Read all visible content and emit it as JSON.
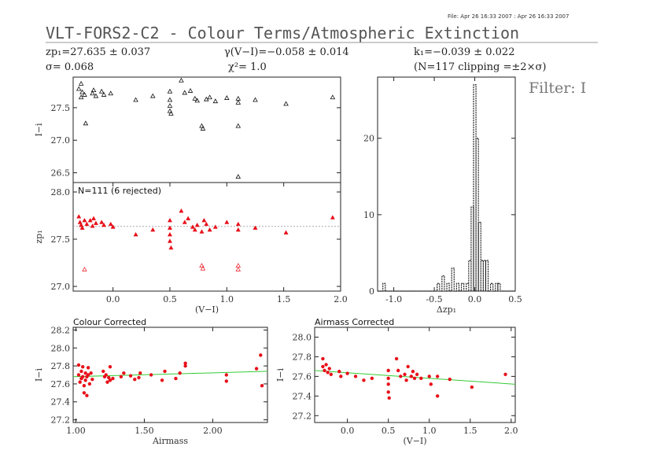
{
  "header": {
    "file_info": "File: Apr 26 16:33 2007 : Apr 26 16:33 2007",
    "title": "VLT-FORS2-C2  -  Colour Terms/Atmospheric Extinction",
    "zp": "zp₁=27.635 ± 0.037",
    "sigma": "σ= 0.068",
    "gamma": "γ(V−I)=−0.058 ± 0.014",
    "chi2": "χ²= 1.0",
    "k": "k₁=−0.039 ± 0.022",
    "n_clip": "(N=117 clipping =±2×σ)",
    "filter": "Filter: I"
  },
  "colors": {
    "red": "#e8101a",
    "black": "#111111",
    "fit": "#33cc33",
    "dotted": "#aaaaaa",
    "hist": "#222222"
  },
  "chart_data": [
    {
      "type": "scatter",
      "id": "raw",
      "ylabel": "I−i",
      "xlim": [
        -0.35,
        2.0
      ],
      "ylim": [
        26.35,
        27.97
      ],
      "xticks": [],
      "yticks": [
        "27.5",
        "27.0",
        "26.5"
      ],
      "marker": "open-triangle",
      "points": [
        [
          -0.28,
          27.87
        ],
        [
          -0.3,
          27.79
        ],
        [
          -0.27,
          27.74
        ],
        [
          -0.25,
          27.7
        ],
        [
          -0.28,
          27.66
        ],
        [
          -0.24,
          27.26
        ],
        [
          -0.18,
          27.72
        ],
        [
          -0.17,
          27.77
        ],
        [
          -0.15,
          27.68
        ],
        [
          -0.1,
          27.75
        ],
        [
          -0.08,
          27.7
        ],
        [
          -0.02,
          27.72
        ],
        [
          0.2,
          27.62
        ],
        [
          0.35,
          27.68
        ],
        [
          0.5,
          27.75
        ],
        [
          0.5,
          27.62
        ],
        [
          0.5,
          27.53
        ],
        [
          0.5,
          27.45
        ],
        [
          0.51,
          27.41
        ],
        [
          0.6,
          27.92
        ],
        [
          0.63,
          27.73
        ],
        [
          0.68,
          27.76
        ],
        [
          0.72,
          27.64
        ],
        [
          0.74,
          27.61
        ],
        [
          0.78,
          27.22
        ],
        [
          0.79,
          27.18
        ],
        [
          0.82,
          27.63
        ],
        [
          0.85,
          27.66
        ],
        [
          0.9,
          27.6
        ],
        [
          1.0,
          27.65
        ],
        [
          1.1,
          27.64
        ],
        [
          1.1,
          27.58
        ],
        [
          1.1,
          27.22
        ],
        [
          1.1,
          26.44
        ],
        [
          1.25,
          27.62
        ],
        [
          1.52,
          27.56
        ],
        [
          1.93,
          27.66
        ]
      ]
    },
    {
      "type": "scatter",
      "id": "zp",
      "note": "N=111 (6 rejected)",
      "xlabel": "(V−I)",
      "ylabel": "zp₁",
      "xlim": [
        -0.35,
        2.0
      ],
      "ylim": [
        26.95,
        28.1
      ],
      "xticks": [
        "0.0",
        "0.5",
        "1.0",
        "1.5",
        "2.0"
      ],
      "yticks": [
        "28.0",
        "27.5",
        "27.0"
      ],
      "ref_line": 27.635,
      "points": [
        [
          -0.3,
          27.74
        ],
        [
          -0.29,
          27.68
        ],
        [
          -0.28,
          27.65
        ],
        [
          -0.27,
          27.62
        ],
        [
          -0.25,
          27.7
        ],
        [
          -0.23,
          27.66
        ],
        [
          -0.2,
          27.7
        ],
        [
          -0.18,
          27.64
        ],
        [
          -0.17,
          27.72
        ],
        [
          -0.15,
          27.67
        ],
        [
          -0.1,
          27.68
        ],
        [
          -0.08,
          27.65
        ],
        [
          -0.02,
          27.66
        ],
        [
          0.0,
          27.63
        ],
        [
          0.2,
          27.55
        ],
        [
          0.35,
          27.6
        ],
        [
          0.5,
          27.7
        ],
        [
          0.5,
          27.62
        ],
        [
          0.5,
          27.55
        ],
        [
          0.5,
          27.48
        ],
        [
          0.51,
          27.41
        ],
        [
          0.6,
          27.8
        ],
        [
          0.63,
          27.68
        ],
        [
          0.66,
          27.72
        ],
        [
          0.7,
          27.63
        ],
        [
          0.72,
          27.6
        ],
        [
          0.74,
          27.65
        ],
        [
          0.78,
          27.58
        ],
        [
          0.8,
          27.7
        ],
        [
          0.82,
          27.66
        ],
        [
          0.85,
          27.6
        ],
        [
          0.9,
          27.63
        ],
        [
          1.0,
          27.68
        ],
        [
          1.1,
          27.66
        ],
        [
          1.1,
          27.6
        ],
        [
          1.25,
          27.62
        ],
        [
          1.52,
          27.57
        ],
        [
          1.93,
          27.73
        ]
      ],
      "rejected": [
        [
          -0.25,
          27.18
        ],
        [
          0.78,
          27.22
        ],
        [
          0.79,
          27.19
        ],
        [
          1.1,
          27.22
        ],
        [
          1.1,
          27.18
        ]
      ]
    },
    {
      "type": "histogram",
      "id": "hist",
      "xlabel": "Δzp₁",
      "xlim": [
        -1.2,
        0.5
      ],
      "ylim": [
        0,
        28
      ],
      "xticks": [
        "-1.0",
        "-0.5",
        "0.0",
        "0.5"
      ],
      "yticks": [
        "0",
        "10",
        "20"
      ],
      "bin_width": 0.03,
      "counts": [
        [
          -1.12,
          1
        ],
        [
          -0.45,
          1
        ],
        [
          -0.39,
          2
        ],
        [
          -0.33,
          1
        ],
        [
          -0.27,
          3
        ],
        [
          -0.21,
          1
        ],
        [
          -0.15,
          1
        ],
        [
          -0.09,
          1
        ],
        [
          -0.06,
          4
        ],
        [
          -0.03,
          11
        ],
        [
          0.0,
          27
        ],
        [
          0.03,
          20
        ],
        [
          0.06,
          9
        ],
        [
          0.09,
          4
        ],
        [
          0.12,
          4
        ],
        [
          0.15,
          4
        ],
        [
          0.21,
          1
        ],
        [
          0.27,
          1
        ],
        [
          0.3,
          1
        ]
      ]
    },
    {
      "type": "scatter",
      "id": "colour-corrected",
      "title": "Colour Corrected",
      "xlabel": "Airmass",
      "ylabel": "I−i",
      "xlim": [
        0.98,
        2.4
      ],
      "ylim": [
        27.17,
        28.23
      ],
      "xticks": [
        "1.00",
        "1.50",
        "2.00"
      ],
      "yticks": [
        "28.2",
        "28.0",
        "27.8",
        "27.6",
        "27.4",
        "27.2"
      ],
      "fit_line": [
        [
          0.98,
          27.68
        ],
        [
          2.4,
          27.74
        ]
      ],
      "points": [
        [
          1.02,
          27.81
        ],
        [
          1.02,
          27.7
        ],
        [
          1.03,
          27.62
        ],
        [
          1.04,
          27.66
        ],
        [
          1.04,
          27.74
        ],
        [
          1.05,
          27.79
        ],
        [
          1.05,
          27.68
        ],
        [
          1.06,
          27.58
        ],
        [
          1.06,
          27.5
        ],
        [
          1.07,
          27.72
        ],
        [
          1.07,
          27.64
        ],
        [
          1.08,
          27.68
        ],
        [
          1.08,
          27.47
        ],
        [
          1.09,
          27.78
        ],
        [
          1.09,
          27.7
        ],
        [
          1.1,
          27.6
        ],
        [
          1.11,
          27.72
        ],
        [
          1.12,
          27.65
        ],
        [
          1.2,
          27.74
        ],
        [
          1.21,
          27.68
        ],
        [
          1.22,
          27.7
        ],
        [
          1.23,
          27.62
        ],
        [
          1.24,
          27.67
        ],
        [
          1.25,
          27.64
        ],
        [
          1.25,
          27.79
        ],
        [
          1.27,
          27.66
        ],
        [
          1.33,
          27.68
        ],
        [
          1.35,
          27.72
        ],
        [
          1.4,
          27.69
        ],
        [
          1.43,
          27.65
        ],
        [
          1.46,
          27.67
        ],
        [
          1.47,
          27.72
        ],
        [
          1.55,
          27.7
        ],
        [
          1.63,
          27.64
        ],
        [
          1.65,
          27.74
        ],
        [
          1.73,
          27.66
        ],
        [
          1.76,
          27.72
        ],
        [
          1.8,
          27.8
        ],
        [
          1.8,
          27.83
        ],
        [
          2.1,
          27.7
        ],
        [
          2.1,
          27.63
        ],
        [
          2.32,
          27.77
        ],
        [
          2.35,
          27.92
        ],
        [
          2.36,
          27.58
        ]
      ]
    },
    {
      "type": "scatter",
      "id": "airmass-corrected",
      "title": "Airmass Corrected",
      "xlabel": "(V−I)",
      "ylabel": "I−i",
      "xlim": [
        -0.4,
        2.05
      ],
      "ylim": [
        27.13,
        28.1
      ],
      "xticks": [
        "0.0",
        "0.5",
        "1.0",
        "1.5",
        "2.0"
      ],
      "yticks": [
        "28.0",
        "27.8",
        "27.6",
        "27.4",
        "27.2"
      ],
      "fit_line": [
        [
          -0.4,
          27.66
        ],
        [
          2.05,
          27.52
        ]
      ],
      "points": [
        [
          -0.3,
          27.78
        ],
        [
          -0.3,
          27.7
        ],
        [
          -0.28,
          27.66
        ],
        [
          -0.26,
          27.72
        ],
        [
          -0.24,
          27.64
        ],
        [
          -0.22,
          27.68
        ],
        [
          -0.2,
          27.62
        ],
        [
          -0.1,
          27.65
        ],
        [
          -0.08,
          27.6
        ],
        [
          0.0,
          27.63
        ],
        [
          0.1,
          27.6
        ],
        [
          0.2,
          27.56
        ],
        [
          0.3,
          27.58
        ],
        [
          0.5,
          27.66
        ],
        [
          0.5,
          27.58
        ],
        [
          0.5,
          27.52
        ],
        [
          0.5,
          27.44
        ],
        [
          0.51,
          27.38
        ],
        [
          0.6,
          27.78
        ],
        [
          0.62,
          27.66
        ],
        [
          0.65,
          27.6
        ],
        [
          0.7,
          27.62
        ],
        [
          0.72,
          27.56
        ],
        [
          0.74,
          27.7
        ],
        [
          0.78,
          27.6
        ],
        [
          0.8,
          27.65
        ],
        [
          0.82,
          27.58
        ],
        [
          0.85,
          27.62
        ],
        [
          0.9,
          27.58
        ],
        [
          1.0,
          27.6
        ],
        [
          1.02,
          27.52
        ],
        [
          1.1,
          27.6
        ],
        [
          1.1,
          27.4
        ],
        [
          1.25,
          27.57
        ],
        [
          1.52,
          27.49
        ],
        [
          1.93,
          27.62
        ]
      ]
    }
  ]
}
